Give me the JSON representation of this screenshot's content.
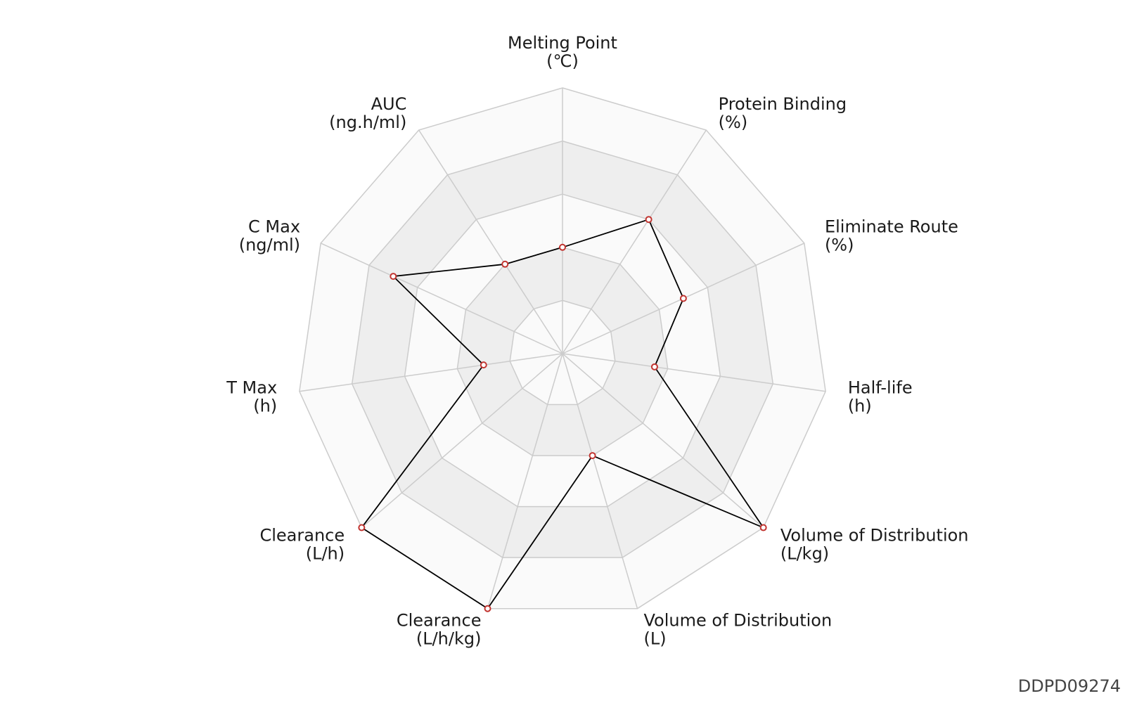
{
  "chart_data": {
    "type": "radar",
    "axes": [
      {
        "name": "Melting Point",
        "unit": "(℃)",
        "value": 0.4
      },
      {
        "name": "Protein Binding",
        "unit": "(%)",
        "value": 0.6
      },
      {
        "name": "Eliminate Route",
        "unit": "(%)",
        "value": 0.5
      },
      {
        "name": "Half-life",
        "unit": "(h)",
        "value": 0.35
      },
      {
        "name": "Volume of Distribution",
        "unit": "(L/kg)",
        "value": 1.0
      },
      {
        "name": "Volume of Distribution",
        "unit": "(L)",
        "value": 0.4
      },
      {
        "name": "Clearance",
        "unit": "(L/h/kg)",
        "value": 1.0
      },
      {
        "name": "Clearance",
        "unit": "(L/h)",
        "value": 1.0
      },
      {
        "name": "T Max",
        "unit": "(h)",
        "value": 0.3
      },
      {
        "name": "C Max",
        "unit": "(ng/ml)",
        "value": 0.7
      },
      {
        "name": "AUC",
        "unit": "(ng.h/ml)",
        "value": 0.4
      }
    ],
    "rings": 5,
    "grid": true,
    "colors": {
      "line": "#000000",
      "point_fill": "#ffffff",
      "point_stroke": "#c23531",
      "grid_line": "#cccccc",
      "band_light": "#fafafa",
      "band_dark": "#eeeeee"
    }
  },
  "watermark": "DDPD09274"
}
